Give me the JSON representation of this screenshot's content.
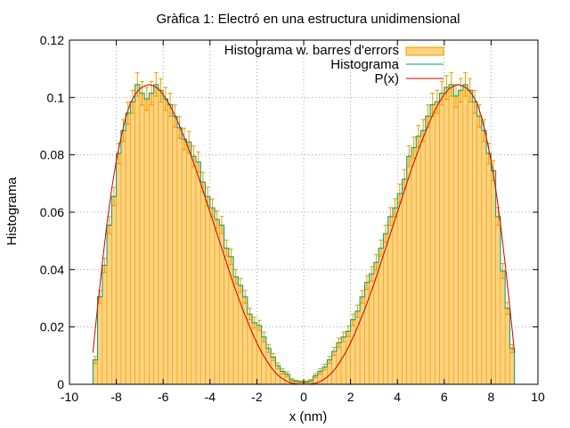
{
  "chart_data": {
    "type": "bar",
    "title": "Gràfica 1: Electró en una estructura unidimensional",
    "xlabel": "x (nm)",
    "ylabel": "Histograma",
    "xlim": [
      -10,
      10
    ],
    "ylim": [
      0,
      0.12
    ],
    "x_ticks": [
      -10,
      -8,
      -6,
      -4,
      -2,
      0,
      2,
      4,
      6,
      8,
      10
    ],
    "y_ticks": [
      0,
      0.02,
      0.04,
      0.06,
      0.08,
      0.1,
      0.12
    ],
    "x_tick_labels": [
      "-10",
      "-8",
      "-6",
      "-4",
      "-2",
      "0",
      "2",
      "4",
      "6",
      "8",
      "10"
    ],
    "y_tick_labels": [
      "0",
      "0.02",
      "0.04",
      "0.06",
      "0.08",
      "0.1",
      "0.12"
    ],
    "grid": true,
    "legend_position": "top-right",
    "bins": {
      "start": -9.0,
      "end": 9.0,
      "width": 0.2,
      "centers": [
        -8.9,
        -8.7,
        -8.5,
        -8.3,
        -8.1,
        -7.9,
        -7.7,
        -7.5,
        -7.3,
        -7.1,
        -6.9,
        -6.7,
        -6.5,
        -6.3,
        -6.1,
        -5.9,
        -5.7,
        -5.5,
        -5.3,
        -5.1,
        -4.9,
        -4.7,
        -4.5,
        -4.3,
        -4.1,
        -3.9,
        -3.7,
        -3.5,
        -3.3,
        -3.1,
        -2.9,
        -2.7,
        -2.5,
        -2.3,
        -2.1,
        -1.9,
        -1.7,
        -1.5,
        -1.3,
        -1.1,
        -0.9,
        -0.7,
        -0.5,
        -0.3,
        -0.1,
        0.1,
        0.3,
        0.5,
        0.7,
        0.9,
        1.1,
        1.3,
        1.5,
        1.7,
        1.9,
        2.1,
        2.3,
        2.5,
        2.7,
        2.9,
        3.1,
        3.3,
        3.5,
        3.7,
        3.9,
        4.1,
        4.3,
        4.5,
        4.7,
        4.9,
        5.1,
        5.3,
        5.5,
        5.7,
        5.9,
        6.1,
        6.3,
        6.5,
        6.7,
        6.9,
        7.1,
        7.3,
        7.5,
        7.7,
        7.9,
        8.1,
        8.3,
        8.5,
        8.7,
        8.9
      ]
    },
    "series": [
      {
        "name": "Histograma w. barres d'errors",
        "style": "boxes-with-errorbars",
        "color": "#ffd27f",
        "border_color": "#e69f00",
        "values": [
          0.0085,
          0.0305,
          0.0415,
          0.0555,
          0.0655,
          0.0805,
          0.0885,
          0.0945,
          0.0985,
          0.1045,
          0.1015,
          0.0995,
          0.1015,
          0.1045,
          0.1025,
          0.0995,
          0.0975,
          0.0935,
          0.0895,
          0.0855,
          0.0845,
          0.0795,
          0.0775,
          0.0705,
          0.0655,
          0.0615,
          0.0575,
          0.0555,
          0.0475,
          0.0445,
          0.0375,
          0.0345,
          0.0305,
          0.0245,
          0.0215,
          0.0205,
          0.0165,
          0.0125,
          0.0095,
          0.0065,
          0.0045,
          0.0035,
          0.0015,
          0.001,
          0.0008,
          0.0008,
          0.0012,
          0.003,
          0.0045,
          0.006,
          0.0085,
          0.0115,
          0.0145,
          0.0165,
          0.0185,
          0.0225,
          0.0255,
          0.0305,
          0.0355,
          0.0385,
          0.0425,
          0.0475,
          0.0525,
          0.0585,
          0.0615,
          0.0665,
          0.0715,
          0.0795,
          0.0825,
          0.0865,
          0.0885,
          0.0935,
          0.0975,
          0.0985,
          0.1015,
          0.1035,
          0.1045,
          0.1005,
          0.1025,
          0.1045,
          0.1025,
          0.0985,
          0.0935,
          0.0885,
          0.0805,
          0.0745,
          0.0585,
          0.0395,
          0.0265,
          0.0125
        ],
        "errors": [
          0.0012,
          0.0022,
          0.0025,
          0.003,
          0.0032,
          0.0036,
          0.0038,
          0.0039,
          0.004,
          0.0041,
          0.0041,
          0.004,
          0.0041,
          0.0041,
          0.0041,
          0.004,
          0.004,
          0.0039,
          0.0038,
          0.0037,
          0.0037,
          0.0036,
          0.0035,
          0.0034,
          0.0032,
          0.0031,
          0.003,
          0.003,
          0.0028,
          0.0027,
          0.0025,
          0.0024,
          0.0022,
          0.002,
          0.0019,
          0.0018,
          0.0017,
          0.0014,
          0.0012,
          0.001,
          0.0009,
          0.0008,
          0.0005,
          0.0004,
          0.0004,
          0.0004,
          0.0005,
          0.0007,
          0.0009,
          0.001,
          0.0012,
          0.0014,
          0.0016,
          0.0017,
          0.0018,
          0.002,
          0.0021,
          0.0022,
          0.0024,
          0.0025,
          0.0027,
          0.0028,
          0.003,
          0.0031,
          0.0032,
          0.0033,
          0.0034,
          0.0036,
          0.0037,
          0.0038,
          0.0038,
          0.0039,
          0.004,
          0.004,
          0.0041,
          0.0041,
          0.0041,
          0.004,
          0.0041,
          0.0041,
          0.0041,
          0.004,
          0.0039,
          0.0038,
          0.0036,
          0.0035,
          0.0031,
          0.0026,
          0.0021,
          0.0014
        ]
      },
      {
        "name": "Histograma",
        "style": "histeps",
        "color": "#009e73"
      },
      {
        "name": "P(x)",
        "style": "line",
        "color": "#cc0000",
        "x": [
          -9.0,
          -8.8,
          -8.6,
          -8.4,
          -8.2,
          -8.0,
          -7.8,
          -7.6,
          -7.4,
          -7.2,
          -7.0,
          -6.8,
          -6.6,
          -6.4,
          -6.2,
          -6.0,
          -5.8,
          -5.6,
          -5.4,
          -5.2,
          -5.0,
          -4.8,
          -4.6,
          -4.4,
          -4.2,
          -4.0,
          -3.8,
          -3.6,
          -3.4,
          -3.2,
          -3.0,
          -2.8,
          -2.6,
          -2.4,
          -2.2,
          -2.0,
          -1.8,
          -1.6,
          -1.4,
          -1.2,
          -1.0,
          -0.8,
          -0.6,
          -0.4,
          -0.2,
          0.0,
          0.2,
          0.4,
          0.6,
          0.8,
          1.0,
          1.2,
          1.4,
          1.6,
          1.8,
          2.0,
          2.2,
          2.4,
          2.6,
          2.8,
          3.0,
          3.2,
          3.4,
          3.6,
          3.8,
          4.0,
          4.2,
          4.4,
          4.6,
          4.8,
          5.0,
          5.2,
          5.4,
          5.6,
          5.8,
          6.0,
          6.2,
          6.4,
          6.6,
          6.8,
          7.0,
          7.2,
          7.4,
          7.6,
          7.8,
          8.0,
          8.2,
          8.4,
          8.6,
          8.8,
          9.0
        ],
        "values": [
          0.011,
          0.027,
          0.042,
          0.056,
          0.068,
          0.078,
          0.086,
          0.093,
          0.098,
          0.101,
          0.103,
          0.104,
          0.1045,
          0.104,
          0.103,
          0.101,
          0.0985,
          0.0955,
          0.092,
          0.088,
          0.084,
          0.0795,
          0.075,
          0.07,
          0.065,
          0.06,
          0.055,
          0.05,
          0.045,
          0.04,
          0.035,
          0.0305,
          0.026,
          0.022,
          0.018,
          0.0145,
          0.0112,
          0.0085,
          0.006,
          0.004,
          0.0025,
          0.0014,
          0.0006,
          0.0002,
          5e-05,
          0.0,
          5e-05,
          0.0002,
          0.0006,
          0.0014,
          0.0025,
          0.004,
          0.006,
          0.0085,
          0.0112,
          0.0145,
          0.018,
          0.022,
          0.026,
          0.0305,
          0.035,
          0.04,
          0.045,
          0.05,
          0.055,
          0.06,
          0.065,
          0.07,
          0.075,
          0.0795,
          0.084,
          0.088,
          0.092,
          0.0955,
          0.0985,
          0.101,
          0.103,
          0.104,
          0.1045,
          0.104,
          0.103,
          0.101,
          0.098,
          0.093,
          0.086,
          0.078,
          0.068,
          0.056,
          0.042,
          0.027,
          0.011
        ]
      }
    ]
  }
}
